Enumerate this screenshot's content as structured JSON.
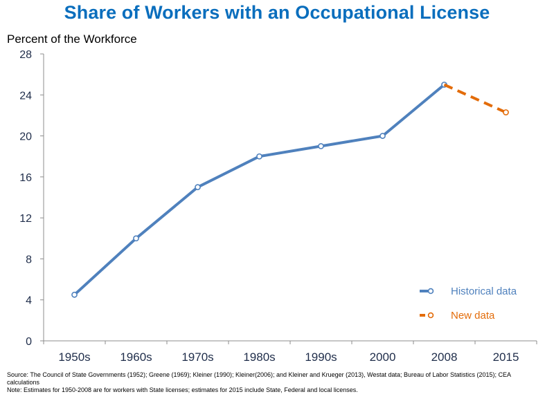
{
  "chart_data": {
    "type": "line",
    "title": "Share of Workers with an Occupational License",
    "ylabel": "Percent of the Workforce",
    "xlabel": "",
    "categories": [
      "1950s",
      "1960s",
      "1970s",
      "1980s",
      "1990s",
      "2000",
      "2008",
      "2015"
    ],
    "ylim": [
      0,
      28
    ],
    "yticks": [
      0,
      4,
      8,
      12,
      16,
      20,
      24,
      28
    ],
    "grid": false,
    "legend_position": "bottom-right",
    "series": [
      {
        "name": "Historical data",
        "color": "#4f81bd",
        "style": "solid",
        "points": [
          {
            "x": "1950s",
            "y": 4.5
          },
          {
            "x": "1960s",
            "y": 10
          },
          {
            "x": "1970s",
            "y": 15
          },
          {
            "x": "1980s",
            "y": 18
          },
          {
            "x": "1990s",
            "y": 19
          },
          {
            "x": "2000",
            "y": 20
          },
          {
            "x": "2008",
            "y": 25
          }
        ]
      },
      {
        "name": "New data",
        "color": "#e36c0a",
        "style": "dashed",
        "points": [
          {
            "x": "2008",
            "y": 25
          },
          {
            "x": "2015",
            "y": 22.3
          }
        ]
      }
    ]
  },
  "notes": {
    "source": "Source: The Council of State Governments (1952); Greene (1969); Kleiner (1990); Kleiner(2006); and Kleiner and Krueger (2013), Westat data; Bureau of Labor Statistics (2015); CEA calculations",
    "note": "Note: Estimates for 1950-2008 are for workers with State licenses; estimates for 2015 include State, Federal and local licenses."
  },
  "colors": {
    "title": "#0a6ebd",
    "axis_text": "#1f2d4a",
    "axis_line": "#8c8c8c"
  }
}
